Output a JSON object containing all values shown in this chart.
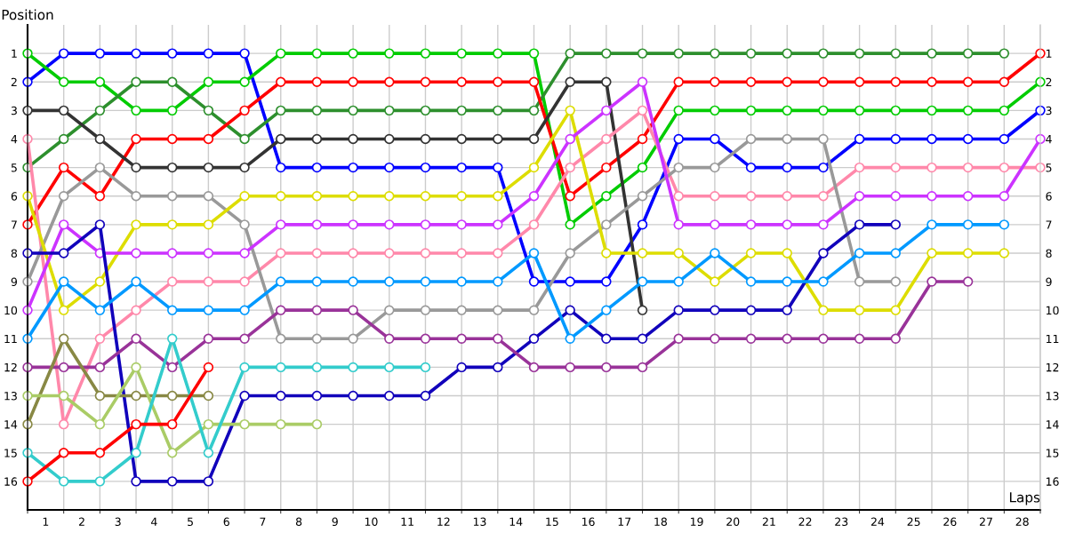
{
  "chart_data": {
    "type": "line",
    "xlabel": "Laps",
    "ylabel": "Position",
    "x": [
      0,
      1,
      2,
      3,
      4,
      5,
      6,
      7,
      8,
      9,
      10,
      11,
      12,
      13,
      14,
      15,
      16,
      17,
      18,
      19,
      20,
      21,
      22,
      23,
      24,
      25,
      26,
      27,
      28
    ],
    "xlim": [
      0,
      28
    ],
    "xticks": [
      {
        "value": 0,
        "label": null
      },
      {
        "value": 0.5,
        "label": "1"
      },
      {
        "value": 1,
        "label": null
      },
      {
        "value": 1.5,
        "label": "2"
      },
      {
        "value": 2,
        "label": null
      },
      {
        "value": 2.5,
        "label": "3"
      },
      {
        "value": 3,
        "label": null
      },
      {
        "value": 3.5,
        "label": "4"
      },
      {
        "value": 4,
        "label": null
      },
      {
        "value": 4.5,
        "label": "5"
      },
      {
        "value": 5,
        "label": null
      },
      {
        "value": 5.5,
        "label": "6"
      },
      {
        "value": 6,
        "label": null
      },
      {
        "value": 6.5,
        "label": "7"
      },
      {
        "value": 7,
        "label": null
      },
      {
        "value": 7.5,
        "label": "8"
      },
      {
        "value": 8,
        "label": null
      },
      {
        "value": 8.5,
        "label": "9"
      },
      {
        "value": 9,
        "label": null
      },
      {
        "value": 9.5,
        "label": "10"
      },
      {
        "value": 10,
        "label": null
      },
      {
        "value": 10.5,
        "label": "11"
      },
      {
        "value": 11,
        "label": null
      },
      {
        "value": 11.5,
        "label": "12"
      },
      {
        "value": 12,
        "label": null
      },
      {
        "value": 12.5,
        "label": "13"
      },
      {
        "value": 13,
        "label": null
      },
      {
        "value": 13.5,
        "label": "14"
      },
      {
        "value": 14,
        "label": null
      },
      {
        "value": 14.5,
        "label": "15"
      },
      {
        "value": 15,
        "label": null
      },
      {
        "value": 15.5,
        "label": "16"
      },
      {
        "value": 16,
        "label": null
      },
      {
        "value": 16.5,
        "label": "17"
      },
      {
        "value": 17,
        "label": null
      },
      {
        "value": 17.5,
        "label": "18"
      },
      {
        "value": 18,
        "label": null
      },
      {
        "value": 18.5,
        "label": "19"
      },
      {
        "value": 19,
        "label": null
      },
      {
        "value": 19.5,
        "label": "20"
      },
      {
        "value": 20,
        "label": null
      },
      {
        "value": 20.5,
        "label": "21"
      },
      {
        "value": 21,
        "label": null
      },
      {
        "value": 21.5,
        "label": "22"
      },
      {
        "value": 22,
        "label": null
      },
      {
        "value": 22.5,
        "label": "23"
      },
      {
        "value": 23,
        "label": null
      },
      {
        "value": 23.5,
        "label": "24"
      },
      {
        "value": 24,
        "label": null
      },
      {
        "value": 24.5,
        "label": "25"
      },
      {
        "value": 25,
        "label": null
      },
      {
        "value": 25.5,
        "label": "26"
      },
      {
        "value": 26,
        "label": null
      },
      {
        "value": 26.5,
        "label": "27"
      },
      {
        "value": 27,
        "label": null
      },
      {
        "value": 27.5,
        "label": "28"
      },
      {
        "value": 28,
        "label": null
      }
    ],
    "ylim": [
      17,
      0
    ],
    "yticks": [
      1,
      2,
      3,
      4,
      5,
      6,
      7,
      8,
      9,
      10,
      11,
      12,
      13,
      14,
      15,
      16
    ],
    "y2lim": [
      17,
      0
    ],
    "y2ticks": [
      1,
      2,
      3,
      4,
      5,
      6,
      7,
      8,
      9,
      10,
      11,
      12,
      13,
      14,
      15,
      16
    ],
    "grid": true,
    "marker": "circle",
    "line_style": "solid",
    "series": [
      {
        "color": "#0000ff",
        "values": [
          2,
          1,
          1,
          1,
          1,
          1,
          1,
          5,
          5,
          5,
          5,
          5,
          5,
          5,
          9,
          9,
          9,
          7,
          4,
          4,
          5,
          5,
          5,
          4,
          4,
          4,
          4,
          4,
          3
        ]
      },
      {
        "color": "#00cc00",
        "values": [
          1,
          2,
          2,
          3,
          3,
          2,
          2,
          1,
          1,
          1,
          1,
          1,
          1,
          1,
          1,
          7,
          6,
          5,
          3,
          3,
          3,
          3,
          3,
          3,
          3,
          3,
          3,
          3,
          2
        ]
      },
      {
        "color": "#2d8f2d",
        "values": [
          5,
          4,
          3,
          2,
          2,
          3,
          4,
          3,
          3,
          3,
          3,
          3,
          3,
          3,
          3,
          1,
          1,
          1,
          1,
          1,
          1,
          1,
          1,
          1,
          1,
          1,
          1,
          1,
          null
        ]
      },
      {
        "color": "#ff0000",
        "values": [
          7,
          5,
          6,
          4,
          4,
          4,
          3,
          2,
          2,
          2,
          2,
          2,
          2,
          2,
          2,
          6,
          5,
          4,
          2,
          2,
          2,
          2,
          2,
          2,
          2,
          2,
          2,
          2,
          1
        ]
      },
      {
        "color": "#333333",
        "values": [
          3,
          3,
          4,
          5,
          5,
          5,
          5,
          4,
          4,
          4,
          4,
          4,
          4,
          4,
          4,
          2,
          2,
          10,
          null,
          null,
          null,
          null,
          null,
          null,
          null,
          null,
          null,
          null,
          null
        ]
      },
      {
        "color": "#ff88aa",
        "values": [
          4,
          14,
          11,
          10,
          9,
          9,
          9,
          8,
          8,
          8,
          8,
          8,
          8,
          8,
          7,
          5,
          4,
          3,
          6,
          6,
          6,
          6,
          6,
          5,
          5,
          5,
          5,
          5,
          5
        ]
      },
      {
        "color": "#999999",
        "values": [
          9,
          6,
          5,
          6,
          6,
          6,
          7,
          11,
          11,
          11,
          10,
          10,
          10,
          10,
          10,
          8,
          7,
          6,
          5,
          5,
          4,
          4,
          4,
          9,
          9,
          null,
          null,
          null,
          null
        ]
      },
      {
        "color": "#dddd00",
        "values": [
          6,
          10,
          9,
          7,
          7,
          7,
          6,
          6,
          6,
          6,
          6,
          6,
          6,
          6,
          5,
          3,
          8,
          8,
          8,
          9,
          8,
          8,
          10,
          10,
          10,
          8,
          8,
          8,
          null
        ]
      },
      {
        "color": "#cc33ff",
        "values": [
          10,
          7,
          8,
          8,
          8,
          8,
          8,
          7,
          7,
          7,
          7,
          7,
          7,
          7,
          6,
          4,
          3,
          2,
          7,
          7,
          7,
          7,
          7,
          6,
          6,
          6,
          6,
          6,
          4
        ]
      },
      {
        "color": "#1100bb",
        "values": [
          8,
          8,
          7,
          16,
          16,
          16,
          13,
          13,
          13,
          13,
          13,
          13,
          12,
          12,
          11,
          10,
          11,
          11,
          10,
          10,
          10,
          10,
          8,
          7,
          7,
          null,
          null,
          null,
          null
        ]
      },
      {
        "color": "#0099ff",
        "values": [
          11,
          9,
          10,
          9,
          10,
          10,
          10,
          9,
          9,
          9,
          9,
          9,
          9,
          9,
          8,
          11,
          10,
          9,
          9,
          8,
          9,
          9,
          9,
          8,
          8,
          7,
          7,
          7,
          null
        ]
      },
      {
        "color": "#993399",
        "values": [
          12,
          12,
          12,
          11,
          12,
          11,
          11,
          10,
          10,
          10,
          11,
          11,
          11,
          11,
          12,
          12,
          12,
          12,
          11,
          11,
          11,
          11,
          11,
          11,
          11,
          9,
          9,
          null,
          null
        ]
      },
      {
        "color": "#888844",
        "values": [
          14,
          11,
          13,
          13,
          13,
          13,
          null,
          null,
          null,
          null,
          null,
          null,
          null,
          null,
          null,
          null,
          null,
          null,
          null,
          null,
          null,
          null,
          null,
          null,
          null,
          null,
          null,
          null,
          null
        ]
      },
      {
        "color": "#aacc66",
        "values": [
          13,
          13,
          14,
          12,
          15,
          14,
          14,
          14,
          14,
          null,
          null,
          null,
          null,
          null,
          null,
          null,
          null,
          null,
          null,
          null,
          null,
          null,
          null,
          null,
          null,
          null,
          null,
          null,
          null
        ]
      },
      {
        "color": "#33cccc",
        "values": [
          15,
          16,
          16,
          15,
          11,
          15,
          12,
          12,
          12,
          12,
          12,
          12,
          null,
          null,
          null,
          null,
          null,
          null,
          null,
          null,
          null,
          null,
          null,
          null,
          null,
          null,
          null,
          null,
          null
        ]
      },
      {
        "color": "#ff0000",
        "values": [
          16,
          15,
          15,
          14,
          14,
          12,
          null,
          null,
          null,
          null,
          null,
          null,
          null,
          null,
          null,
          null,
          null,
          null,
          null,
          null,
          null,
          null,
          null,
          null,
          null,
          null,
          null,
          null,
          null
        ]
      }
    ]
  }
}
